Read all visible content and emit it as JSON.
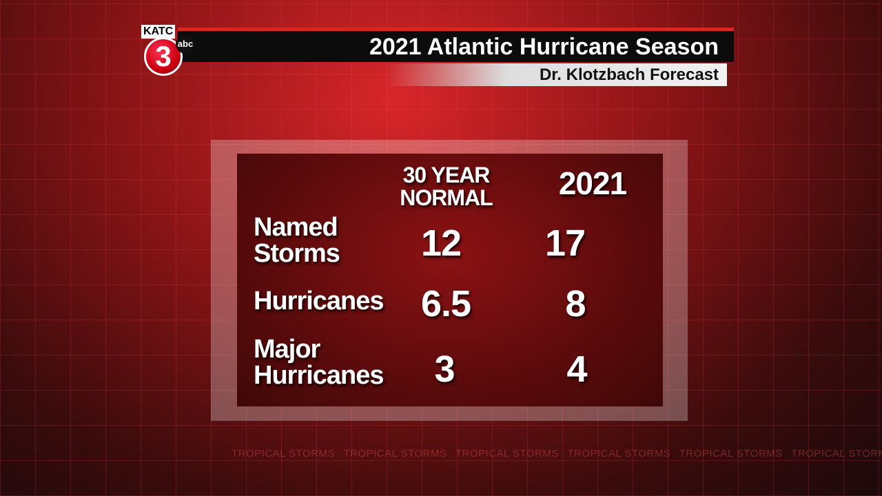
{
  "logo": {
    "station": "KATC",
    "channel": "3",
    "network": "abc"
  },
  "header": {
    "title": "2021 Atlantic Hurricane Season",
    "subtitle": "Dr. Klotzbach Forecast"
  },
  "table": {
    "columns": [
      "30 YEAR NORMAL",
      "2021"
    ],
    "rows": [
      [
        "Named Storms",
        12,
        17
      ],
      [
        "Hurricanes",
        6.5,
        8
      ],
      [
        "Major Hurricanes",
        3,
        4
      ]
    ]
  },
  "background": {
    "ticker": "TROPICAL STORMS"
  }
}
